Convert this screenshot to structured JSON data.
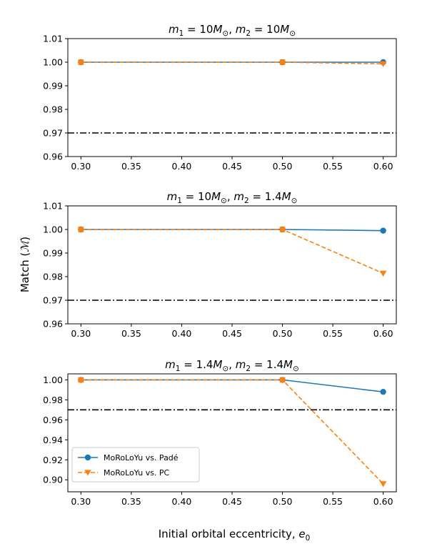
{
  "chart_data": [
    {
      "type": "line",
      "title_parts": [
        {
          "t": "m",
          "style": "italic"
        },
        {
          "t": "1",
          "style": "sub"
        },
        {
          "t": " = 10",
          "style": "normal"
        },
        {
          "t": "M",
          "style": "italic"
        },
        {
          "t": "⊙",
          "style": "sub"
        },
        {
          "t": ", ",
          "style": "normal"
        },
        {
          "t": "m",
          "style": "italic"
        },
        {
          "t": "2",
          "style": "sub"
        },
        {
          "t": " = 10",
          "style": "normal"
        },
        {
          "t": "M",
          "style": "italic"
        },
        {
          "t": "⊙",
          "style": "sub"
        }
      ],
      "x": [
        0.3,
        0.5,
        0.6
      ],
      "xlim": [
        0.287,
        0.613
      ],
      "xticks": [
        "0.30",
        "0.35",
        "0.40",
        "0.45",
        "0.50",
        "0.55",
        "0.60"
      ],
      "ylim": [
        0.96,
        1.01
      ],
      "yticks": [
        "0.96",
        "0.97",
        "0.98",
        "0.99",
        "1.00",
        "1.01"
      ],
      "threshold": 0.97,
      "series": [
        {
          "name": "MoRoLoYu vs. Padé",
          "values": [
            1.0,
            1.0,
            1.0
          ],
          "color": "#1f77b4"
        },
        {
          "name": "MoRoLoYu vs. PC",
          "values": [
            1.0,
            1.0,
            0.9993
          ],
          "color": "#ff7f0e"
        }
      ]
    },
    {
      "type": "line",
      "title_parts": [
        {
          "t": "m",
          "style": "italic"
        },
        {
          "t": "1",
          "style": "sub"
        },
        {
          "t": " = 10",
          "style": "normal"
        },
        {
          "t": "M",
          "style": "italic"
        },
        {
          "t": "⊙",
          "style": "sub"
        },
        {
          "t": ", ",
          "style": "normal"
        },
        {
          "t": "m",
          "style": "italic"
        },
        {
          "t": "2",
          "style": "sub"
        },
        {
          "t": " = 1.4",
          "style": "normal"
        },
        {
          "t": "M",
          "style": "italic"
        },
        {
          "t": "⊙",
          "style": "sub"
        }
      ],
      "x": [
        0.3,
        0.5,
        0.6
      ],
      "xlim": [
        0.287,
        0.613
      ],
      "xticks": [
        "0.30",
        "0.35",
        "0.40",
        "0.45",
        "0.50",
        "0.55",
        "0.60"
      ],
      "ylim": [
        0.96,
        1.01
      ],
      "yticks": [
        "0.96",
        "0.97",
        "0.98",
        "0.99",
        "1.00",
        "1.01"
      ],
      "threshold": 0.97,
      "series": [
        {
          "name": "MoRoLoYu vs. Padé",
          "values": [
            1.0,
            1.0,
            0.9995
          ],
          "color": "#1f77b4"
        },
        {
          "name": "MoRoLoYu vs. PC",
          "values": [
            1.0,
            1.0,
            0.9814
          ],
          "color": "#ff7f0e"
        }
      ]
    },
    {
      "type": "line",
      "title_parts": [
        {
          "t": "m",
          "style": "italic"
        },
        {
          "t": "1",
          "style": "sub"
        },
        {
          "t": " = 1.4",
          "style": "normal"
        },
        {
          "t": "M",
          "style": "italic"
        },
        {
          "t": "⊙",
          "style": "sub"
        },
        {
          "t": ", ",
          "style": "normal"
        },
        {
          "t": "m",
          "style": "italic"
        },
        {
          "t": "2",
          "style": "sub"
        },
        {
          "t": " = 1.4",
          "style": "normal"
        },
        {
          "t": "M",
          "style": "italic"
        },
        {
          "t": "⊙",
          "style": "sub"
        }
      ],
      "x": [
        0.3,
        0.5,
        0.6
      ],
      "xlim": [
        0.287,
        0.613
      ],
      "xticks": [
        "0.30",
        "0.35",
        "0.40",
        "0.45",
        "0.50",
        "0.55",
        "0.60"
      ],
      "ylim": [
        0.888,
        1.006
      ],
      "yticks": [
        "0.90",
        "0.92",
        "0.94",
        "0.96",
        "0.98",
        "1.00"
      ],
      "threshold": 0.97,
      "legend": "lower-left",
      "series": [
        {
          "name": "MoRoLoYu vs. Padé",
          "values": [
            1.0,
            1.0,
            0.988
          ],
          "color": "#1f77b4"
        },
        {
          "name": "MoRoLoYu vs. PC",
          "values": [
            1.0,
            1.0,
            0.896
          ],
          "color": "#ff7f0e"
        }
      ]
    }
  ],
  "labels": {
    "ylabel_prefix": "Match (",
    "ylabel_symbol": "ℳ",
    "ylabel_suffix": ")",
    "xlabel_prefix": "Initial orbital eccentricity, ",
    "xlabel_var": "e",
    "xlabel_sub": "0"
  }
}
